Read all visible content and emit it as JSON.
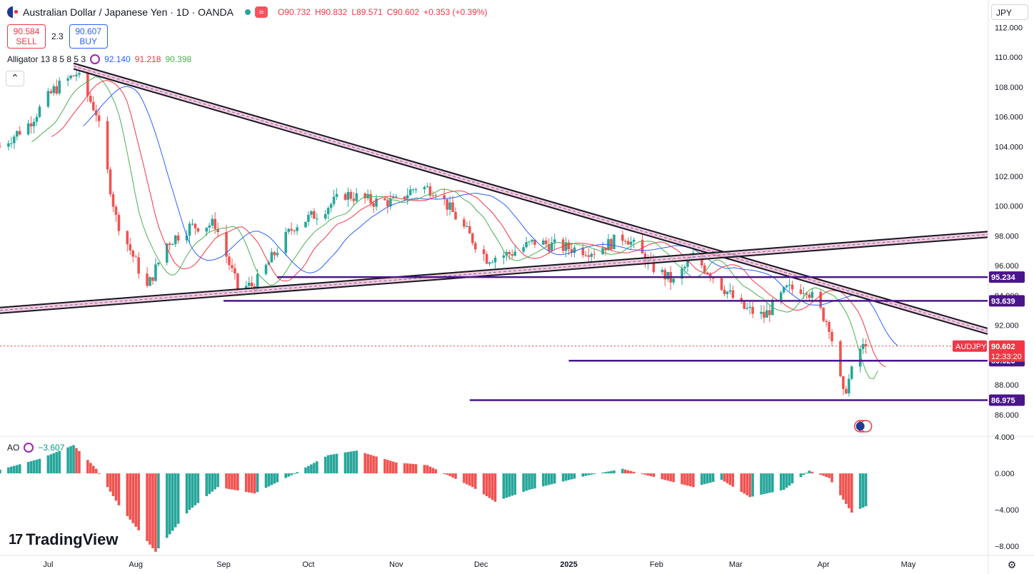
{
  "header": {
    "title": "Australian Dollar / Japanese Yen · 1D · OANDA",
    "wave_badge": "≈",
    "open": "O90.732",
    "high": "H90.832",
    "low": "L89.571",
    "close": "C90.602",
    "change": "+0.353 (+0.39%)"
  },
  "trade": {
    "sell_price": "90.584",
    "sell_label": "SELL",
    "spread": "2.3",
    "buy_price": "90.607",
    "buy_label": "BUY"
  },
  "indicator": {
    "name": "Alligator 13 8 5 8 5 3",
    "jaw": "92.140",
    "teeth": "91.218",
    "lips": "90.398",
    "collapse_icon": "chevron-up-icon"
  },
  "currency_button": "JPY",
  "ao": {
    "name": "AO",
    "value": "−3.607"
  },
  "logo_text": "TradingView",
  "colors": {
    "up": "#26a69a",
    "down": "#ef5350",
    "jaw": "#2962ff",
    "teeth": "#f23645",
    "lips": "#4caf50",
    "level": "#4a148c",
    "trend": "#131722"
  },
  "chart_data": [
    {
      "type": "candlestick",
      "symbol": "AUDJPY",
      "timeframe": "1D",
      "y_axis_ticks": [
        "112.000",
        "110.000",
        "108.000",
        "106.000",
        "104.000",
        "102.000",
        "100.000",
        "98.000",
        "96.000",
        "94.000",
        "92.000",
        "88.000",
        "86.000"
      ],
      "ylim": [
        84.6,
        112.4
      ],
      "x_axis_ticks": [
        "Jul",
        "Aug",
        "Sep",
        "Oct",
        "Nov",
        "Dec",
        "2025",
        "Feb",
        "Mar",
        "Apr",
        "May"
      ],
      "x_tick_dates": [
        "2024-07-01",
        "2024-08-01",
        "2024-09-01",
        "2024-10-01",
        "2024-11-01",
        "2024-12-01",
        "2025-01-01",
        "2025-02-01",
        "2025-03-01",
        "2025-04-01",
        "2025-05-01"
      ],
      "xlim": [
        "2024-06-14",
        "2025-05-29"
      ],
      "approx_closes": [
        {
          "date": "2024-06-14",
          "close": 104.0
        },
        {
          "date": "2024-06-24",
          "close": 105.5
        },
        {
          "date": "2024-07-03",
          "close": 107.8
        },
        {
          "date": "2024-07-11",
          "close": 108.9
        },
        {
          "date": "2024-07-18",
          "close": 106.3
        },
        {
          "date": "2024-07-25",
          "close": 99.2
        },
        {
          "date": "2024-08-05",
          "close": 94.5
        },
        {
          "date": "2024-08-12",
          "close": 97.5
        },
        {
          "date": "2024-08-20",
          "close": 98.6
        },
        {
          "date": "2024-08-29",
          "close": 98.8
        },
        {
          "date": "2024-09-06",
          "close": 94.5
        },
        {
          "date": "2024-09-12",
          "close": 94.7
        },
        {
          "date": "2024-09-20",
          "close": 97.1
        },
        {
          "date": "2024-09-26",
          "close": 98.7
        },
        {
          "date": "2024-10-04",
          "close": 99.5
        },
        {
          "date": "2024-10-14",
          "close": 100.8
        },
        {
          "date": "2024-10-24",
          "close": 100.3
        },
        {
          "date": "2024-11-01",
          "close": 100.3
        },
        {
          "date": "2024-11-08",
          "close": 101.3
        },
        {
          "date": "2024-11-15",
          "close": 101.1
        },
        {
          "date": "2024-11-25",
          "close": 98.5
        },
        {
          "date": "2024-12-03",
          "close": 96.5
        },
        {
          "date": "2024-12-11",
          "close": 96.8
        },
        {
          "date": "2024-12-20",
          "close": 97.6
        },
        {
          "date": "2024-12-31",
          "close": 97.2
        },
        {
          "date": "2025-01-10",
          "close": 97.0
        },
        {
          "date": "2025-01-21",
          "close": 98.0
        },
        {
          "date": "2025-01-30",
          "close": 96.0
        },
        {
          "date": "2025-02-07",
          "close": 94.9
        },
        {
          "date": "2025-02-14",
          "close": 96.6
        },
        {
          "date": "2025-02-21",
          "close": 95.3
        },
        {
          "date": "2025-03-03",
          "close": 93.2
        },
        {
          "date": "2025-03-11",
          "close": 92.6
        },
        {
          "date": "2025-03-19",
          "close": 94.4
        },
        {
          "date": "2025-03-26",
          "close": 94.5
        },
        {
          "date": "2025-04-03",
          "close": 92.0
        },
        {
          "date": "2025-04-08",
          "close": 87.3
        },
        {
          "date": "2025-04-14",
          "close": 90.4
        },
        {
          "date": "2025-04-16",
          "close": 90.602
        }
      ],
      "alligator_last": {
        "jaw": 92.14,
        "teeth": 91.218,
        "lips": 90.398
      },
      "horizontal_levels": [
        "95.234",
        "93.639",
        "89.623",
        "86.975"
      ],
      "trendlines": [
        {
          "from": {
            "date": "2024-07-10",
            "price": 109.4
          },
          "to": {
            "date": "2025-05-29",
            "price": 91.6
          }
        },
        {
          "from": {
            "date": "2024-06-14",
            "price": 93.0
          },
          "to": {
            "date": "2025-05-29",
            "price": 98.1
          }
        }
      ],
      "last_price": {
        "symbol": "AUDJPY",
        "value": "90.602",
        "countdown": "12:33:20"
      }
    },
    {
      "type": "bar",
      "name": "AO",
      "y_axis_ticks": [
        "4.000",
        "0.000",
        "−4.000",
        "−8.000"
      ],
      "ylim": [
        -9.0,
        4.0
      ],
      "approx_values": [
        {
          "date": "2024-06-14",
          "value": 0.4
        },
        {
          "date": "2024-06-28",
          "value": 1.6
        },
        {
          "date": "2024-07-10",
          "value": 3.1
        },
        {
          "date": "2024-07-18",
          "value": 0.5
        },
        {
          "date": "2024-07-26",
          "value": -3.5
        },
        {
          "date": "2024-08-08",
          "value": -8.6
        },
        {
          "date": "2024-08-20",
          "value": -4.0
        },
        {
          "date": "2024-08-30",
          "value": -1.5
        },
        {
          "date": "2024-09-12",
          "value": -2.2
        },
        {
          "date": "2024-09-25",
          "value": -0.2
        },
        {
          "date": "2024-10-08",
          "value": 2.0
        },
        {
          "date": "2024-10-18",
          "value": 2.5
        },
        {
          "date": "2024-11-01",
          "value": 1.2
        },
        {
          "date": "2024-11-12",
          "value": 0.9
        },
        {
          "date": "2024-11-28",
          "value": -1.5
        },
        {
          "date": "2024-12-06",
          "value": -3.1
        },
        {
          "date": "2024-12-18",
          "value": -1.8
        },
        {
          "date": "2025-01-08",
          "value": -0.2
        },
        {
          "date": "2025-01-20",
          "value": 0.5
        },
        {
          "date": "2025-02-05",
          "value": -0.8
        },
        {
          "date": "2025-02-14",
          "value": -1.5
        },
        {
          "date": "2025-02-24",
          "value": -0.7
        },
        {
          "date": "2025-03-06",
          "value": -2.6
        },
        {
          "date": "2025-03-18",
          "value": -1.8
        },
        {
          "date": "2025-03-27",
          "value": 0.3
        },
        {
          "date": "2025-04-03",
          "value": -0.5
        },
        {
          "date": "2025-04-11",
          "value": -4.3
        },
        {
          "date": "2025-04-16",
          "value": -3.607
        }
      ]
    }
  ]
}
